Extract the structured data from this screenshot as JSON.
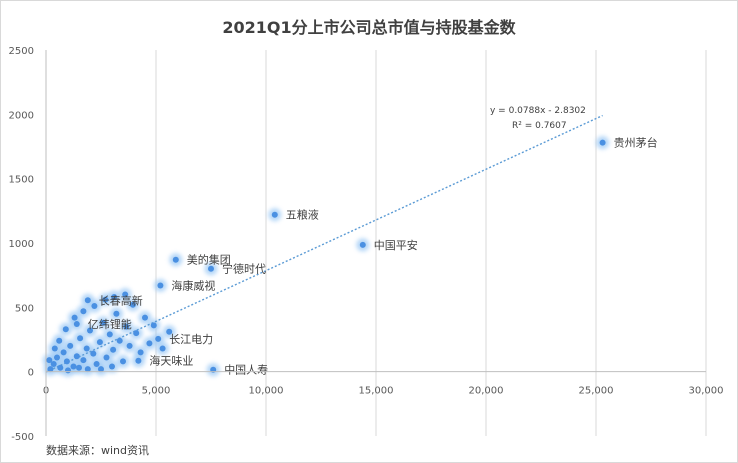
{
  "chart_data": {
    "type": "scatter",
    "title": "2021Q1分上市公司总市值与持股基金数",
    "source": "数据来源：wind资讯",
    "xlim": [
      0,
      30000
    ],
    "ylim": [
      -500,
      2500
    ],
    "x_ticks": [
      0,
      5000,
      10000,
      15000,
      20000,
      25000,
      30000
    ],
    "x_tick_labels": [
      "0",
      "5,000",
      "10,000",
      "15,000",
      "20,000",
      "25,000",
      "30,000"
    ],
    "y_ticks": [
      -500,
      0,
      500,
      1000,
      1500,
      2000,
      2500
    ],
    "y_tick_labels": [
      "-500",
      "0",
      "500",
      "1000",
      "1500",
      "2000",
      "2500"
    ],
    "grid": "vertical gridlines",
    "point_color": "#4a90e2",
    "glow_color": "#9cc9f5",
    "trendline": {
      "slope": 0.0788,
      "intercept": -2.8302,
      "equation": "y = 0.0788x - 2.8302",
      "r2": "R² = 0.7607",
      "color": "#5b9bd5"
    },
    "labeled_points": [
      {
        "name": "贵州茅台",
        "x": 25300,
        "y": 1780
      },
      {
        "name": "五粮液",
        "x": 10400,
        "y": 1220
      },
      {
        "name": "中国平安",
        "x": 14400,
        "y": 985
      },
      {
        "name": "美的集团",
        "x": 5900,
        "y": 870
      },
      {
        "name": "宁德时代",
        "x": 7500,
        "y": 800
      },
      {
        "name": "海康威视",
        "x": 5200,
        "y": 670
      },
      {
        "name": "长春高新",
        "x": 1900,
        "y": 555
      },
      {
        "name": "亿纬锂能",
        "x": 1400,
        "y": 370
      },
      {
        "name": "长江电力",
        "x": 5100,
        "y": 255
      },
      {
        "name": "海天味业",
        "x": 4200,
        "y": 85
      },
      {
        "name": "中国人寿",
        "x": 7600,
        "y": 15
      }
    ],
    "cluster_points": [
      {
        "x": 200,
        "y": 20
      },
      {
        "x": 350,
        "y": 60
      },
      {
        "x": 500,
        "y": 110
      },
      {
        "x": 650,
        "y": 30
      },
      {
        "x": 800,
        "y": 150
      },
      {
        "x": 950,
        "y": 80
      },
      {
        "x": 1100,
        "y": 200
      },
      {
        "x": 1250,
        "y": 40
      },
      {
        "x": 1400,
        "y": 120
      },
      {
        "x": 1550,
        "y": 260
      },
      {
        "x": 1700,
        "y": 90
      },
      {
        "x": 1850,
        "y": 180
      },
      {
        "x": 2000,
        "y": 320
      },
      {
        "x": 2150,
        "y": 140
      },
      {
        "x": 2300,
        "y": 60
      },
      {
        "x": 2450,
        "y": 230
      },
      {
        "x": 2600,
        "y": 380
      },
      {
        "x": 2750,
        "y": 110
      },
      {
        "x": 2900,
        "y": 290
      },
      {
        "x": 3050,
        "y": 170
      },
      {
        "x": 3200,
        "y": 450
      },
      {
        "x": 3350,
        "y": 240
      },
      {
        "x": 3500,
        "y": 80
      },
      {
        "x": 3650,
        "y": 350
      },
      {
        "x": 3800,
        "y": 200
      },
      {
        "x": 3950,
        "y": 520
      },
      {
        "x": 4100,
        "y": 300
      },
      {
        "x": 4300,
        "y": 150
      },
      {
        "x": 4500,
        "y": 420
      },
      {
        "x": 4700,
        "y": 220
      },
      {
        "x": 4900,
        "y": 360
      },
      {
        "x": 5300,
        "y": 180
      },
      {
        "x": 5600,
        "y": 310
      },
      {
        "x": 600,
        "y": 240
      },
      {
        "x": 900,
        "y": 330
      },
      {
        "x": 1300,
        "y": 420
      },
      {
        "x": 1700,
        "y": 470
      },
      {
        "x": 2200,
        "y": 510
      },
      {
        "x": 2700,
        "y": 560
      },
      {
        "x": 3100,
        "y": 580
      },
      {
        "x": 3600,
        "y": 600
      },
      {
        "x": 2500,
        "y": 20
      },
      {
        "x": 3000,
        "y": 40
      },
      {
        "x": 400,
        "y": 180
      },
      {
        "x": 1000,
        "y": 10
      },
      {
        "x": 1500,
        "y": 30
      },
      {
        "x": 1900,
        "y": 20
      },
      {
        "x": 150,
        "y": 90
      }
    ]
  }
}
